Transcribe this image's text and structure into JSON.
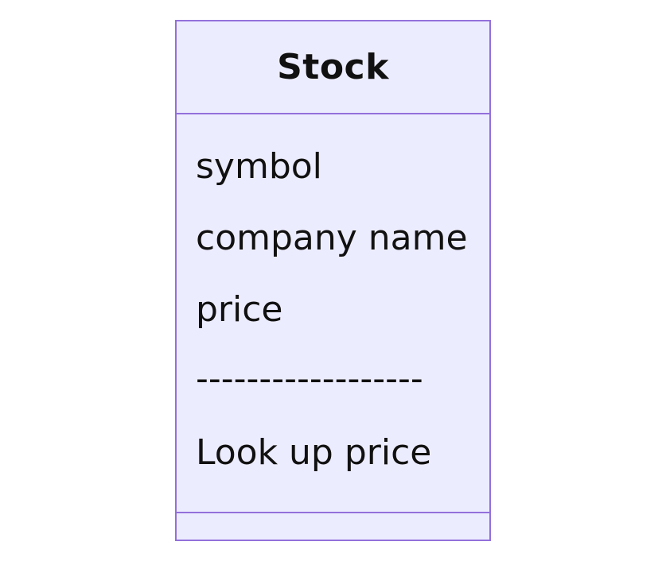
{
  "diagram": {
    "class_name": "Stock",
    "members": [
      "symbol",
      "company name",
      "price",
      "------------------",
      "Look up price"
    ],
    "methods": []
  },
  "colors": {
    "box_fill": "#ececff",
    "box_border": "#9370db",
    "text": "#111111"
  }
}
